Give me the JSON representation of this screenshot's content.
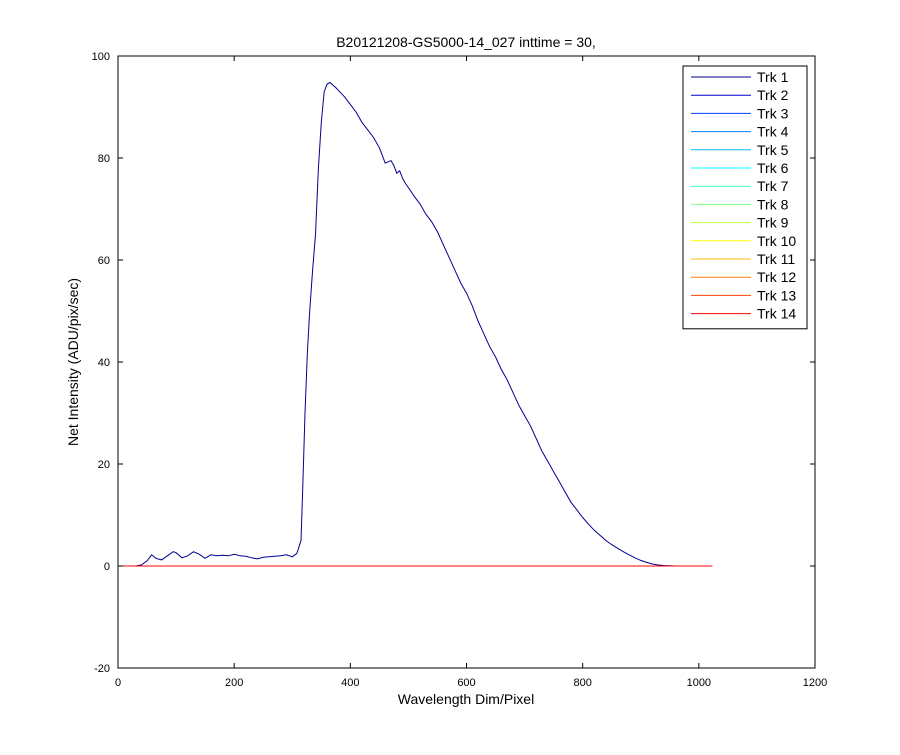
{
  "chart_data": {
    "type": "line",
    "title": "B20121208-GS5000-14_027 inttime = 30,",
    "xlabel": "Wavelength Dim/Pixel",
    "ylabel": "Net Intensity (ADU/pix/sec)",
    "xlim": [
      0,
      1200
    ],
    "ylim": [
      -20,
      100
    ],
    "xticks": [
      0,
      200,
      400,
      600,
      800,
      1000,
      1200
    ],
    "yticks": [
      -20,
      0,
      20,
      40,
      60,
      80,
      100
    ],
    "grid": false,
    "legend_position": "top-right",
    "series": [
      {
        "name": "Trk 1",
        "color": "#00008F",
        "x": [
          0,
          30,
          40,
          50,
          58,
          65,
          75,
          85,
          95,
          100,
          110,
          120,
          130,
          140,
          150,
          160,
          170,
          180,
          190,
          200,
          210,
          220,
          230,
          240,
          250,
          260,
          270,
          280,
          290,
          300,
          308,
          315,
          318,
          322,
          326,
          330,
          335,
          340,
          345,
          350,
          355,
          360,
          365,
          370,
          375,
          380,
          390,
          400,
          410,
          420,
          430,
          440,
          450,
          460,
          470,
          475,
          480,
          485,
          490,
          495,
          500,
          510,
          520,
          530,
          540,
          550,
          560,
          570,
          580,
          590,
          600,
          610,
          620,
          630,
          640,
          650,
          660,
          670,
          680,
          690,
          700,
          710,
          720,
          730,
          740,
          750,
          760,
          770,
          780,
          790,
          800,
          810,
          820,
          830,
          840,
          850,
          860,
          870,
          880,
          890,
          900,
          910,
          920,
          930,
          940,
          950,
          960,
          970,
          980,
          990,
          1000
        ],
        "y": [
          0,
          0,
          0.2,
          1.0,
          2.2,
          1.5,
          1.2,
          2.0,
          2.8,
          2.6,
          1.6,
          2.0,
          2.8,
          2.3,
          1.5,
          2.2,
          2.0,
          2.1,
          2.0,
          2.3,
          2.0,
          1.9,
          1.6,
          1.4,
          1.7,
          1.8,
          1.9,
          2.0,
          2.2,
          1.8,
          2.5,
          5.0,
          15.0,
          30.0,
          42.0,
          50.0,
          58.0,
          65.0,
          78.0,
          87.0,
          93.0,
          94.5,
          94.8,
          94.3,
          93.8,
          93.2,
          92.0,
          90.5,
          89.0,
          87.0,
          85.5,
          84.0,
          82.0,
          79.0,
          79.5,
          78.5,
          77.0,
          77.5,
          76.0,
          75.0,
          74.2,
          72.5,
          71.0,
          69.0,
          67.5,
          65.5,
          63.0,
          60.5,
          58.0,
          55.5,
          53.5,
          51.0,
          48.0,
          45.5,
          43.0,
          41.0,
          38.5,
          36.5,
          34.0,
          31.5,
          29.5,
          27.5,
          25.0,
          22.5,
          20.5,
          18.5,
          16.5,
          14.5,
          12.5,
          11.0,
          9.5,
          8.2,
          7.0,
          6.0,
          5.0,
          4.2,
          3.5,
          2.8,
          2.2,
          1.6,
          1.1,
          0.7,
          0.4,
          0.2,
          0.1,
          0.05,
          0,
          0,
          0,
          0,
          0
        ]
      },
      {
        "name": "Trk 2",
        "color": "#0000CF",
        "x": [
          0,
          1023
        ],
        "y": [
          0,
          0
        ]
      },
      {
        "name": "Trk 3",
        "color": "#0040FF",
        "x": [
          0,
          1023
        ],
        "y": [
          0,
          0
        ]
      },
      {
        "name": "Trk 4",
        "color": "#0080FF",
        "x": [
          0,
          1023
        ],
        "y": [
          0,
          0
        ]
      },
      {
        "name": "Trk 5",
        "color": "#00BFFF",
        "x": [
          0,
          1023
        ],
        "y": [
          0,
          0
        ]
      },
      {
        "name": "Trk 6",
        "color": "#00FFFF",
        "x": [
          0,
          1023
        ],
        "y": [
          0,
          0
        ]
      },
      {
        "name": "Trk 7",
        "color": "#40FFBF",
        "x": [
          0,
          1023
        ],
        "y": [
          0,
          0
        ]
      },
      {
        "name": "Trk 8",
        "color": "#80FF80",
        "x": [
          0,
          1023
        ],
        "y": [
          0,
          0
        ]
      },
      {
        "name": "Trk 9",
        "color": "#BFFF40",
        "x": [
          0,
          1023
        ],
        "y": [
          0,
          0
        ]
      },
      {
        "name": "Trk 10",
        "color": "#FFFF00",
        "x": [
          0,
          1023
        ],
        "y": [
          0,
          0
        ]
      },
      {
        "name": "Trk 11",
        "color": "#FFBF00",
        "x": [
          0,
          1023
        ],
        "y": [
          0,
          0
        ]
      },
      {
        "name": "Trk 12",
        "color": "#FF8000",
        "x": [
          0,
          1023
        ],
        "y": [
          0,
          0
        ]
      },
      {
        "name": "Trk 13",
        "color": "#FF4000",
        "x": [
          0,
          1023
        ],
        "y": [
          0,
          0
        ]
      },
      {
        "name": "Trk 14",
        "color": "#FF0000",
        "x": [
          0,
          1023
        ],
        "y": [
          0,
          0
        ]
      }
    ]
  }
}
